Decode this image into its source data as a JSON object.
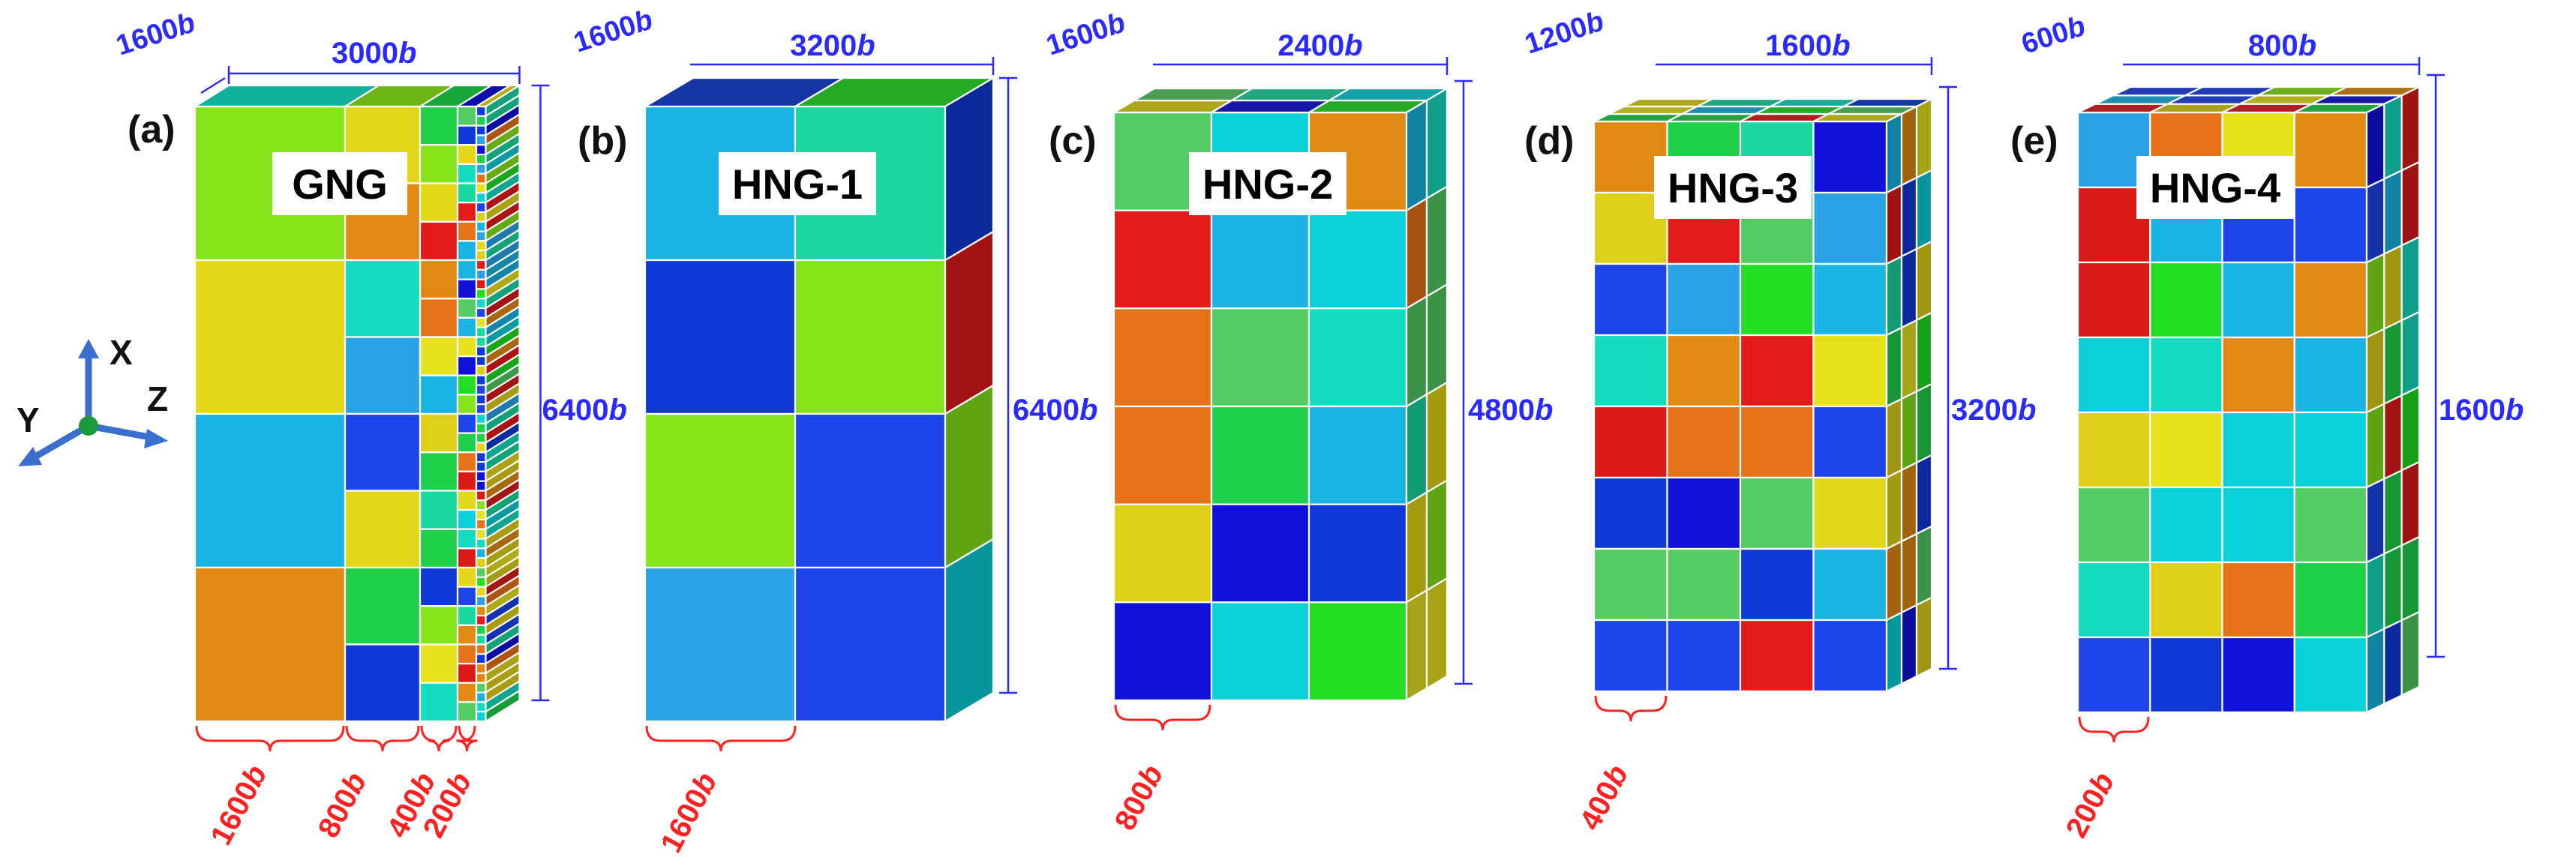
{
  "axes": {
    "x": "X",
    "y": "Y",
    "z": "Z"
  },
  "palette": [
    "#0f39d6",
    "#1c44e8",
    "#1010d8",
    "#1fd14a",
    "#22dd22",
    "#86e41a",
    "#e3d818",
    "#e6e31e",
    "#ded018",
    "#e6721a",
    "#e08a14",
    "#d91a18",
    "#e31b1b",
    "#14dcc0",
    "#1ad8a0",
    "#19b4e3",
    "#2aa3e6",
    "#0ad0d8",
    "#54cc64"
  ],
  "panels": [
    {
      "id": "a",
      "label": "(a)",
      "name": "GNG",
      "dim_depth": "1600b",
      "dim_width": "3000b",
      "dim_height": "6400b",
      "bottom_labels": [
        "1600b",
        "800b",
        "400b",
        "200b"
      ]
    },
    {
      "id": "b",
      "label": "(b)",
      "name": "HNG-1",
      "dim_depth": "1600b",
      "dim_width": "3200b",
      "dim_height": "6400b",
      "bottom_labels": [
        "1600b"
      ]
    },
    {
      "id": "c",
      "label": "(c)",
      "name": "HNG-2",
      "dim_depth": "1600b",
      "dim_width": "2400b",
      "dim_height": "4800b",
      "bottom_labels": [
        "800b"
      ]
    },
    {
      "id": "d",
      "label": "(d)",
      "name": "HNG-3",
      "dim_depth": "1200b",
      "dim_width": "1600b",
      "dim_height": "3200b",
      "bottom_labels": [
        "400b"
      ]
    },
    {
      "id": "e",
      "label": "(e)",
      "name": "HNG-4",
      "dim_depth": "600b",
      "dim_width": "800b",
      "dim_height": "1600b",
      "bottom_labels": [
        "200b"
      ]
    }
  ]
}
